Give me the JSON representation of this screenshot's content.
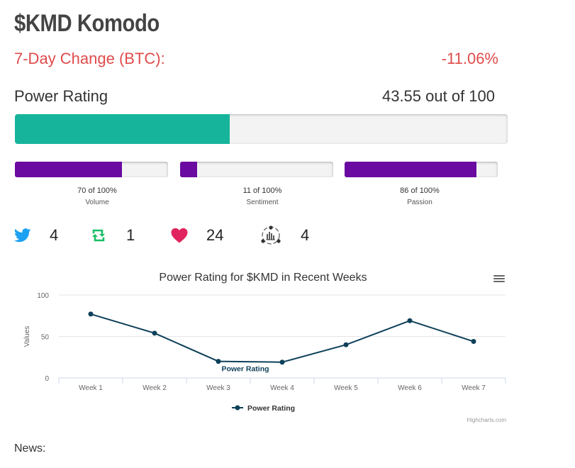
{
  "header": {
    "title": "$KMD Komodo"
  },
  "change": {
    "label": "7-Day Change (BTC):",
    "value": "-11.06%"
  },
  "power": {
    "label": "Power Rating",
    "value_text": "43.55 out of 100",
    "value": 43.55
  },
  "metrics": [
    {
      "name": "Volume",
      "pct_text": "70 of 100%",
      "value": 70
    },
    {
      "name": "Sentiment",
      "pct_text": "11 of 100%",
      "value": 11
    },
    {
      "name": "Passion",
      "pct_text": "86 of 100%",
      "value": 86
    }
  ],
  "social": {
    "twitter": "4",
    "retweet": "1",
    "likes": "24",
    "community": "4"
  },
  "colors": {
    "accent_red": "#e14b4b",
    "power_fill": "#16b59b",
    "metric_fill": "#6a0aa0",
    "twitter": "#1da1f2",
    "retweet": "#17bf63",
    "heart": "#e0245e",
    "series": "#0d4059"
  },
  "chart_data": {
    "type": "line",
    "title": "Power Rating for $KMD in Recent Weeks",
    "categories": [
      "Week 1",
      "Week 2",
      "Week 3",
      "Week 4",
      "Week 5",
      "Week 6",
      "Week 7"
    ],
    "series": [
      {
        "name": "Power Rating",
        "values": [
          77,
          54,
          20,
          19,
          40,
          69,
          44
        ]
      }
    ],
    "ylabel": "Values",
    "xlabel": "",
    "ylim": [
      0,
      100
    ],
    "yticks": [
      0,
      50,
      100
    ],
    "annotation": {
      "text": "Power Rating",
      "point_index": 2
    },
    "legend": "bottom-center",
    "credits": "Highcharts.com"
  },
  "news": {
    "label": "News:"
  }
}
